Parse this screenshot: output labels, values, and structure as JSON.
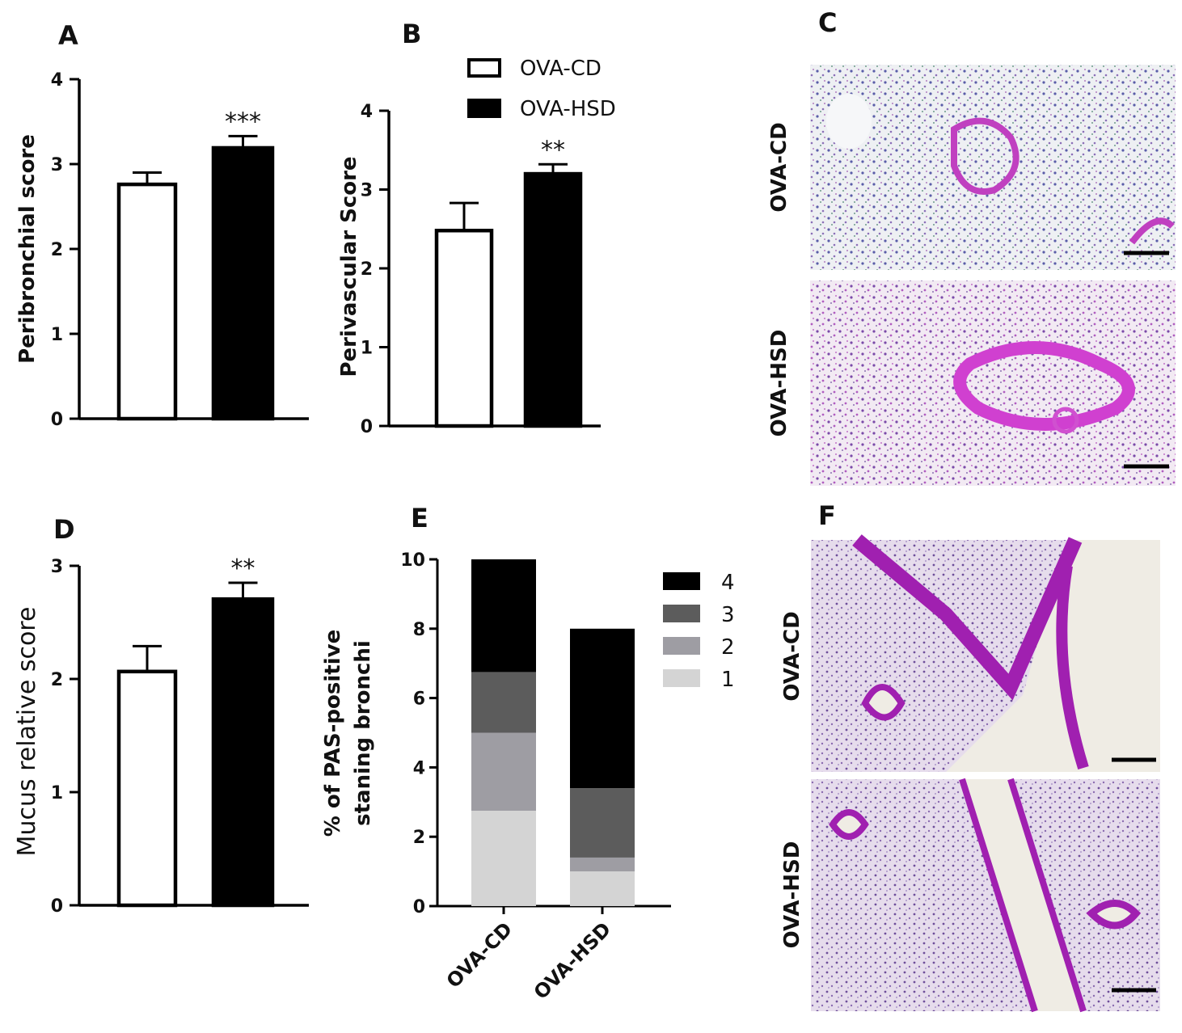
{
  "panels": {
    "A": "A",
    "B": "B",
    "C": "C",
    "D": "D",
    "E": "E",
    "F": "F"
  },
  "legend_top": [
    {
      "label": "OVA-CD",
      "fill": "#ffffff"
    },
    {
      "label": "OVA-HSD",
      "fill": "#000000"
    }
  ],
  "micrographs": {
    "C": {
      "top_label": "OVA-CD",
      "bottom_label": "OVA-HSD",
      "stain_color": "#c040c0"
    },
    "F": {
      "top_label": "OVA-CD",
      "bottom_label": "OVA-HSD",
      "stain_color": "#a020b0"
    }
  },
  "chart_data": [
    {
      "id": "A",
      "type": "bar",
      "categories": [
        "OVA-CD",
        "OVA-HSD"
      ],
      "values": [
        2.78,
        3.21
      ],
      "errors": [
        0.12,
        0.12
      ],
      "significance": [
        "",
        "***"
      ],
      "ylabel": "Peribronchial score",
      "ylim": [
        0,
        4
      ],
      "yticks": [
        "0",
        "1",
        "2",
        "3",
        "4"
      ],
      "colors": [
        "#ffffff",
        "#000000"
      ]
    },
    {
      "id": "B",
      "type": "bar",
      "categories": [
        "OVA-CD",
        "OVA-HSD"
      ],
      "values": [
        2.5,
        3.22
      ],
      "errors": [
        0.33,
        0.1
      ],
      "significance": [
        "",
        "**"
      ],
      "ylabel": "Perivascular Score",
      "ylim": [
        0,
        4
      ],
      "yticks": [
        "0",
        "1",
        "2",
        "3",
        "4"
      ],
      "colors": [
        "#ffffff",
        "#000000"
      ]
    },
    {
      "id": "D",
      "type": "bar",
      "categories": [
        "OVA-CD",
        "OVA-HSD"
      ],
      "values": [
        2.08,
        2.72
      ],
      "errors": [
        0.21,
        0.13
      ],
      "significance": [
        "",
        "**"
      ],
      "ylabel": "Mucus relative score",
      "ylim": [
        0,
        3
      ],
      "yticks": [
        "0",
        "1",
        "2",
        "3"
      ],
      "colors": [
        "#ffffff",
        "#000000"
      ]
    },
    {
      "id": "E",
      "type": "bar",
      "stacked": true,
      "categories": [
        "OVA-CD",
        "OVA-HSD"
      ],
      "series": [
        {
          "name": "1",
          "values": [
            2.75,
            1.0
          ],
          "color": "#d4d4d4"
        },
        {
          "name": "2",
          "values": [
            2.25,
            0.4
          ],
          "color": "#9e9da3"
        },
        {
          "name": "3",
          "values": [
            1.75,
            2.0
          ],
          "color": "#5c5c5c"
        },
        {
          "name": "4",
          "values": [
            3.25,
            4.6
          ],
          "color": "#000000"
        }
      ],
      "ylabel_line1": "% of PAS-positive",
      "ylabel_line2": "staning bronchi",
      "ylim": [
        0,
        10
      ],
      "yticks": [
        "0",
        "2",
        "4",
        "6",
        "8",
        "10"
      ],
      "legend_order": [
        "4",
        "3",
        "2",
        "1"
      ]
    }
  ]
}
